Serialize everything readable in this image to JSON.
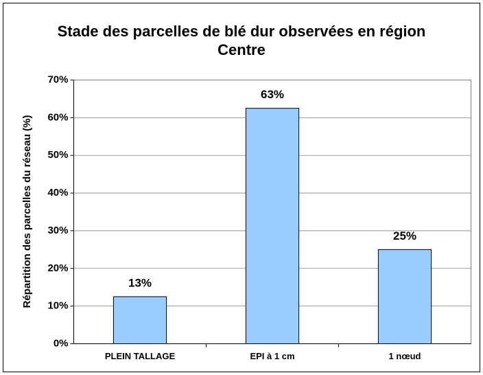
{
  "chart_data": {
    "type": "bar",
    "title": "Stade des parcelles de blé dur observées en région Centre",
    "y_label": "Répartition des parcelles du réseau (%)",
    "categories": [
      "PLEIN TALLAGE",
      "EPI à 1 cm",
      "1 nœud"
    ],
    "values": [
      12.5,
      62.5,
      25
    ],
    "value_labels": [
      "13%",
      "63%",
      "25%"
    ],
    "color": "#99ccff",
    "ylim": [
      0,
      70
    ],
    "yticks": [
      {
        "value": 0,
        "label": "0%"
      },
      {
        "value": 10,
        "label": "10%"
      },
      {
        "value": 20,
        "label": "20%"
      },
      {
        "value": 30,
        "label": "30%"
      },
      {
        "value": 40,
        "label": "40%"
      },
      {
        "value": 50,
        "label": "50%"
      },
      {
        "value": 60,
        "label": "60%"
      },
      {
        "value": 70,
        "label": "70%"
      }
    ],
    "grid": true
  }
}
